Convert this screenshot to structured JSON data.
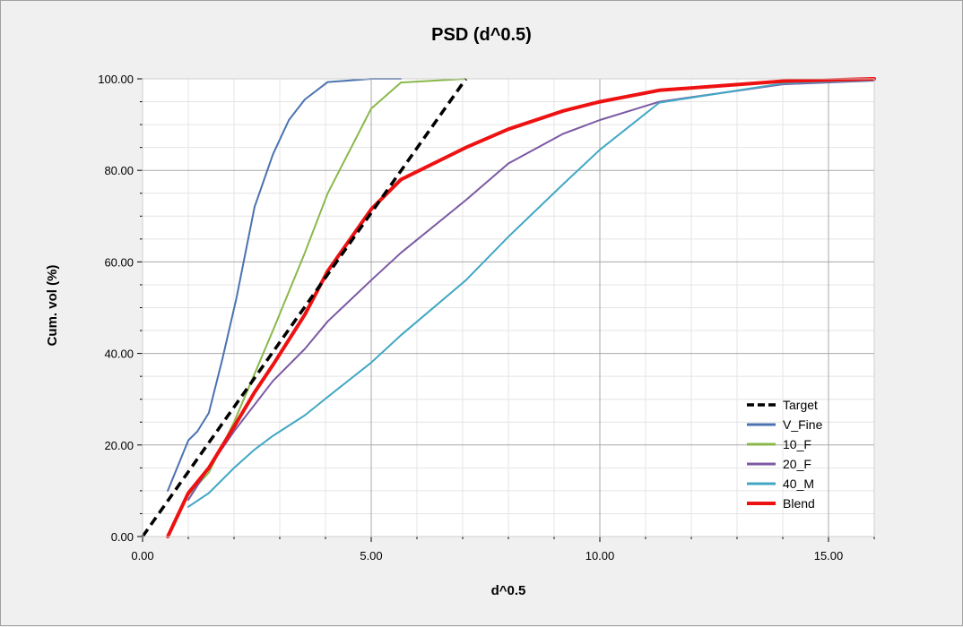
{
  "chart_data": {
    "type": "line",
    "title": "PSD (d^0.5)",
    "xlabel": "d^0.5",
    "ylabel": "Cum. vol (%)",
    "xlim": [
      0,
      16
    ],
    "ylim": [
      0,
      100
    ],
    "x_ticks": [
      0,
      5,
      10,
      15
    ],
    "x_tick_labels": [
      "0.00",
      "5.00",
      "10.00",
      "15.00"
    ],
    "y_ticks": [
      0,
      20,
      40,
      60,
      80,
      100
    ],
    "y_tick_labels": [
      "0.00",
      "20.00",
      "40.00",
      "60.00",
      "80.00",
      "100.00"
    ],
    "grid": true,
    "legend_position": "bottom-right",
    "series": [
      {
        "name": "Target",
        "color": "#000000",
        "dash": true,
        "width": 3.5,
        "x": [
          0,
          7.07
        ],
        "y": [
          0,
          100
        ]
      },
      {
        "name": "V_Fine",
        "color": "#4a72b0",
        "dash": false,
        "width": 2,
        "x": [
          0.55,
          1.0,
          1.2,
          1.45,
          1.75,
          2.05,
          2.45,
          2.85,
          3.2,
          3.55,
          4.05,
          5.0,
          5.65
        ],
        "y": [
          10,
          21,
          23,
          27,
          39,
          52,
          72,
          83.5,
          91,
          95.5,
          99.3,
          100,
          100
        ]
      },
      {
        "name": "10_F",
        "color": "#8ab84a",
        "dash": false,
        "width": 2,
        "x": [
          1.0,
          1.45,
          2.0,
          2.85,
          3.55,
          4.05,
          5.0,
          5.65,
          7.07
        ],
        "y": [
          9,
          14,
          25,
          45,
          62,
          75,
          93.5,
          99.2,
          100
        ]
      },
      {
        "name": "20_F",
        "color": "#7b59a3",
        "dash": false,
        "width": 2,
        "x": [
          1.0,
          1.45,
          2.0,
          2.85,
          3.55,
          4.05,
          5.0,
          5.65,
          7.07,
          8.0,
          9.2,
          10.0,
          11.3,
          14.0,
          16.0
        ],
        "y": [
          8,
          15,
          23,
          34,
          41,
          47,
          56,
          62,
          73.5,
          81.5,
          88,
          91,
          95,
          98.8,
          99.6
        ]
      },
      {
        "name": "40_M",
        "color": "#41a7c4",
        "dash": false,
        "width": 2,
        "x": [
          1.0,
          1.45,
          2.0,
          2.45,
          2.85,
          3.55,
          4.05,
          5.0,
          5.65,
          7.07,
          8.0,
          9.2,
          10.0,
          11.3,
          14.0,
          16.0
        ],
        "y": [
          6.5,
          9.5,
          15,
          19,
          22,
          26.5,
          30.5,
          38,
          44,
          56,
          65.5,
          77,
          84.5,
          94.8,
          99.0,
          99.7
        ]
      },
      {
        "name": "Blend",
        "color": "#ee1111",
        "dash": false,
        "width": 4,
        "x": [
          0.55,
          1.0,
          1.45,
          2.0,
          2.45,
          2.85,
          3.55,
          4.05,
          5.0,
          5.65,
          7.07,
          8.0,
          9.2,
          10.0,
          11.3,
          14.0,
          16.0
        ],
        "y": [
          0,
          9.5,
          15,
          24,
          31.5,
          37.5,
          48.5,
          58,
          71.5,
          78,
          85,
          89,
          93,
          95,
          97.5,
          99.5,
          100
        ]
      }
    ]
  }
}
